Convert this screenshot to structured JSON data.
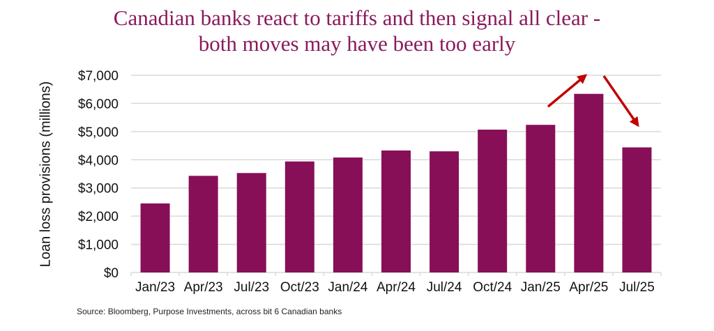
{
  "chart_data": {
    "type": "bar",
    "title": [
      "Canadian banks react to tariffs and then signal all clear -",
      "both moves may have been too early"
    ],
    "ylabel": "Loan loss provisions (millions)",
    "xlabel": "",
    "categories": [
      "Jan/23",
      "Apr/23",
      "Jul/23",
      "Oct/23",
      "Jan/24",
      "Apr/24",
      "Jul/24",
      "Oct/24",
      "Jan/25",
      "Apr/25",
      "Jul/25"
    ],
    "values": [
      2450,
      3430,
      3530,
      3940,
      4080,
      4330,
      4300,
      5070,
      5240,
      6340,
      4440
    ],
    "ylim": [
      0,
      7000
    ],
    "yticks": [
      "$0",
      "$1,000",
      "$2,000",
      "$3,000",
      "$4,000",
      "$5,000",
      "$6,000",
      "$7,000"
    ],
    "grid": true,
    "bar_color": "#870f57",
    "arrow_color": "#c00000",
    "annotations": [
      "up-arrow before Apr/25",
      "down-arrow after Apr/25"
    ],
    "source": "Source: Bloomberg,  Purpose Investments,  across bit 6 Canadian banks"
  }
}
